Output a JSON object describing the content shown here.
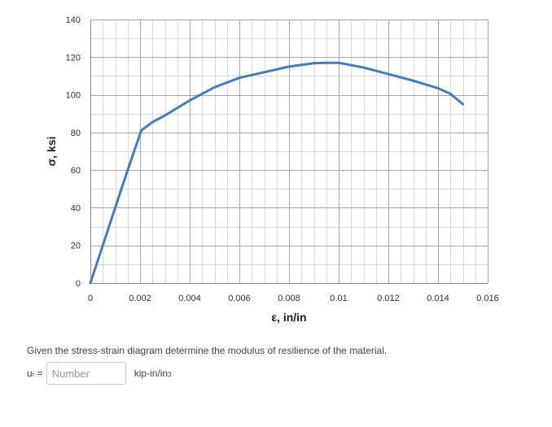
{
  "chart_data": {
    "type": "line",
    "xlabel": "ε, in/in",
    "ylabel": "σ, ksi",
    "xlim": [
      0,
      0.016
    ],
    "ylim": [
      0,
      140
    ],
    "xticks": [
      0,
      0.002,
      0.004,
      0.006,
      0.008,
      0.01,
      0.012,
      0.014,
      0.016
    ],
    "xtick_labels": [
      "0",
      "0.002",
      "0.004",
      "0.006",
      "0.008",
      "0.01",
      "0.012",
      "0.014",
      "0.016"
    ],
    "yticks": [
      0,
      20,
      40,
      60,
      80,
      100,
      120,
      140
    ],
    "ytick_labels": [
      "0",
      "20",
      "40",
      "60",
      "80",
      "100",
      "120",
      "140"
    ],
    "grid": true,
    "minor_grid": true,
    "x_minor_step": 0.0005,
    "y_minor_step": 10,
    "line_color": "#4a7ab5",
    "series": [
      {
        "x": [
          0,
          0.0005,
          0.001,
          0.0015,
          0.00205,
          0.0025,
          0.003,
          0.004,
          0.005,
          0.006,
          0.007,
          0.008,
          0.009,
          0.0095,
          0.01,
          0.011,
          0.012,
          0.013,
          0.014,
          0.0145,
          0.015
        ],
        "y": [
          0,
          20,
          40,
          60,
          81,
          85.5,
          89,
          97,
          104,
          109,
          112,
          115,
          116.8,
          117,
          117,
          114.5,
          111,
          107.5,
          103.5,
          100.5,
          95
        ]
      }
    ]
  },
  "question": {
    "text": "Given the stress-strain diagram determine the modulus of resilience of the material.",
    "label_main": "u",
    "label_sub": "r",
    "label_eq": " =",
    "input_placeholder": "Number",
    "input_value": "",
    "unit_main": "kip-in/in",
    "unit_sup": "3"
  }
}
